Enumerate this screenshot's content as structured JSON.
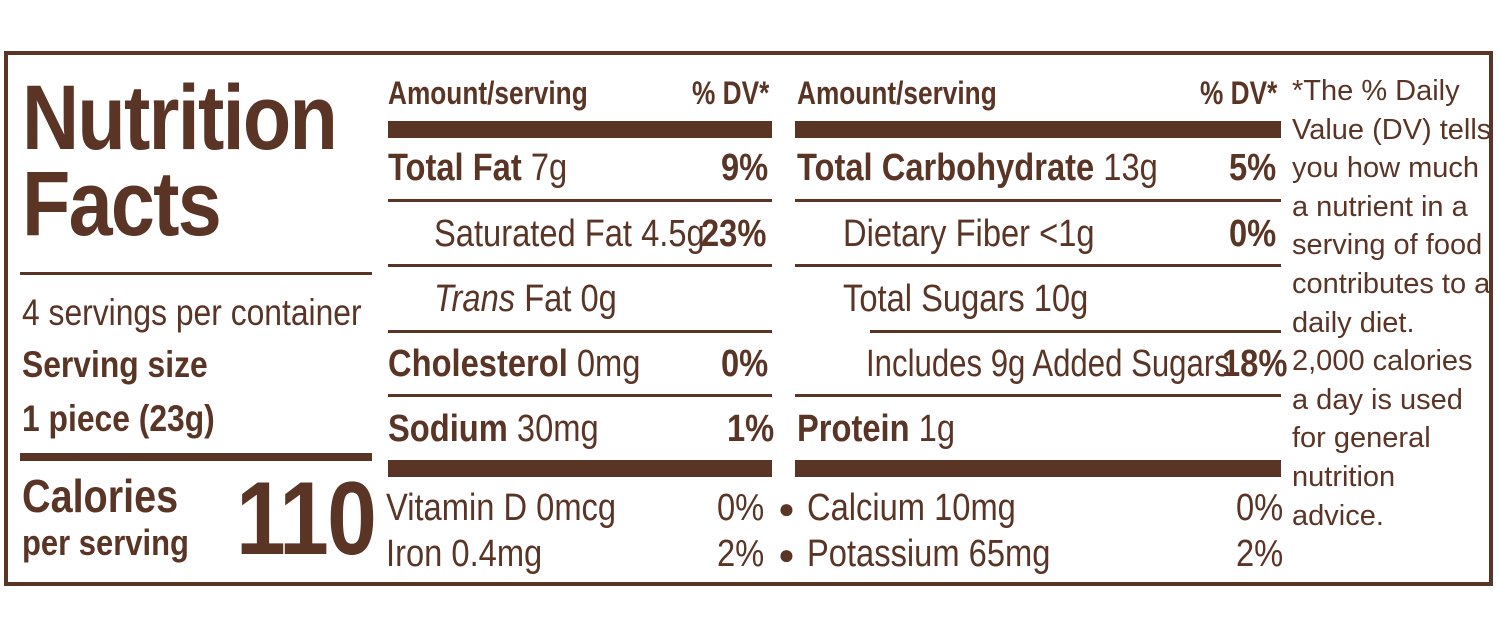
{
  "title_line1": "Nutrition",
  "title_line2": "Facts",
  "servings_per_container": "4 servings per container",
  "serving_size_label": "Serving size",
  "serving_size_value": "1 piece (23g)",
  "calories_label": "Calories",
  "calories_sublabel": "per serving",
  "calories_value": "110",
  "left_col": {
    "header_amount": "Amount/serving",
    "header_dv": "% DV*",
    "rows": [
      {
        "name": "Total Fat",
        "amount": "7g",
        "dv": "9%"
      },
      {
        "name": "Saturated Fat",
        "amount": "4.5g",
        "dv": "23%"
      },
      {
        "name": "Trans",
        "amount": "Fat 0g",
        "dv": ""
      },
      {
        "name": "Cholesterol",
        "amount": "0mg",
        "dv": "0%"
      },
      {
        "name": "Sodium",
        "amount": "30mg",
        "dv": "1%"
      }
    ]
  },
  "right_col": {
    "header_amount": "Amount/serving",
    "header_dv": "% DV*",
    "rows": [
      {
        "name": "Total Carbohydrate",
        "amount": "13g",
        "dv": "5%"
      },
      {
        "name": "Dietary Fiber",
        "amount": "<1g",
        "dv": "0%"
      },
      {
        "name": "Total Sugars",
        "amount": "10g",
        "dv": ""
      },
      {
        "name": "Includes 9g Added Sugars",
        "amount": "",
        "dv": "18%"
      },
      {
        "name": "Protein",
        "amount": "1g",
        "dv": ""
      }
    ]
  },
  "vitamins": {
    "vitamin_d": "Vitamin D 0mcg",
    "vitamin_d_dv": "0%",
    "iron": "Iron 0.4mg",
    "iron_dv": "2%",
    "calcium": "Calcium 10mg",
    "calcium_dv": "0%",
    "potassium": "Potassium 65mg",
    "potassium_dv": "2%",
    "bullet": "●"
  },
  "footnote": "*The % Daily Value (DV) tells you how much a nutrient in a serving of food contributes to a daily diet. 2,000 calories a day is used for general nutrition advice."
}
